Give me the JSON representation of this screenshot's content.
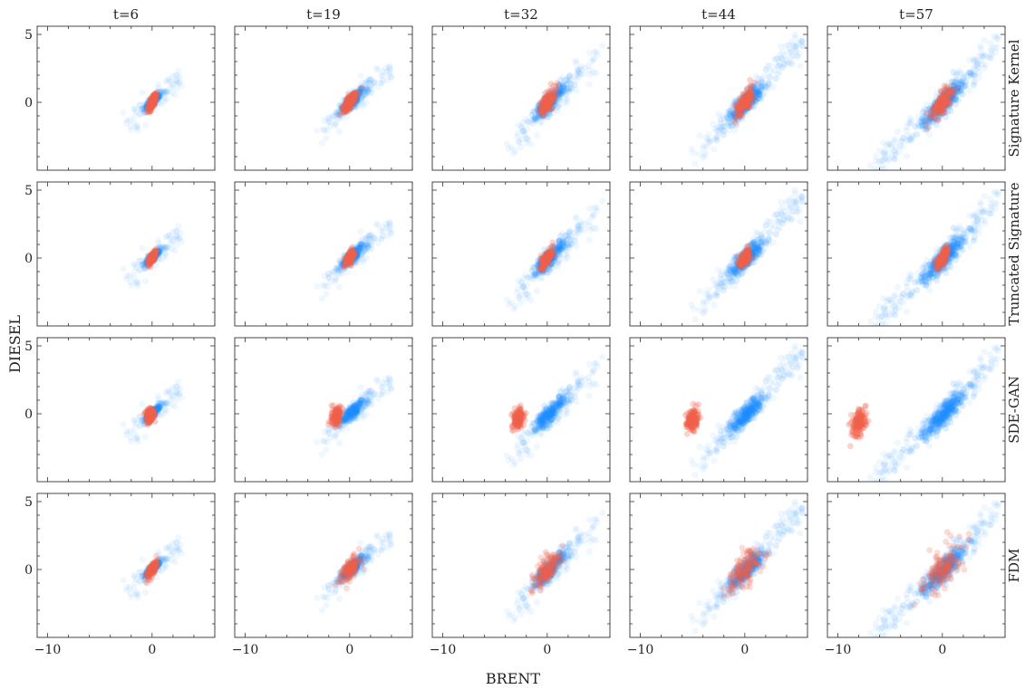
{
  "figure": {
    "xlabel": "BRENT",
    "ylabel": "DIESEL",
    "columns": [
      "t=6",
      "t=19",
      "t=32",
      "t=44",
      "t=57"
    ],
    "rows": [
      "Signature Kernel",
      "Truncated Signature",
      "SDE-GAN",
      "FDM"
    ],
    "colors": {
      "real": "#1e90ff",
      "generated": "#f0604a"
    },
    "xticks": [
      -10,
      0
    ],
    "yticks": [
      5,
      0
    ]
  },
  "chart_data": {
    "type": "scatter",
    "xlabel": "BRENT",
    "ylabel": "DIESEL",
    "xlim": [
      -11,
      6
    ],
    "ylim": [
      -5,
      5.6
    ],
    "grid": false,
    "facet_columns": [
      "t=6",
      "t=19",
      "t=32",
      "t=44",
      "t=57"
    ],
    "facet_rows": [
      "Signature Kernel",
      "Truncated Signature",
      "SDE-GAN",
      "FDM"
    ],
    "series": [
      {
        "role": "real",
        "color": "#1e90ff",
        "by_time": [
          {
            "t": 6,
            "center": [
              0.1,
              0.1
            ],
            "spread_x": 0.7,
            "spread_y": 0.6,
            "x_range": [
              -2.2,
              2.5
            ],
            "y_range": [
              -1.3,
              1.9
            ]
          },
          {
            "t": 19,
            "center": [
              0.2,
              0.1
            ],
            "spread_x": 1.1,
            "spread_y": 1.0,
            "x_range": [
              -2.7,
              3.8
            ],
            "y_range": [
              -2.0,
              2.8
            ]
          },
          {
            "t": 32,
            "center": [
              0.2,
              0.0
            ],
            "spread_x": 1.4,
            "spread_y": 1.3,
            "x_range": [
              -3.8,
              4.8
            ],
            "y_range": [
              -3.3,
              3.8
            ]
          },
          {
            "t": 44,
            "center": [
              0.2,
              0.0
            ],
            "spread_x": 1.6,
            "spread_y": 1.5,
            "x_range": [
              -4.8,
              5.4
            ],
            "y_range": [
              -3.7,
              4.8
            ]
          },
          {
            "t": 57,
            "center": [
              0.2,
              0.0
            ],
            "spread_x": 1.8,
            "spread_y": 1.7,
            "x_range": [
              -6.5,
              5.3
            ],
            "y_range": [
              -4.7,
              4.8
            ]
          }
        ]
      },
      {
        "role": "generated",
        "color": "#f0604a",
        "by_row": [
          {
            "row": "Signature Kernel",
            "centers": [
              [
                0.0,
                0.0
              ],
              [
                0.0,
                0.0
              ],
              [
                0.0,
                0.0
              ],
              [
                0.0,
                0.0
              ],
              [
                0.0,
                0.0
              ]
            ],
            "spread": [
              [
                0.35,
                0.55
              ],
              [
                0.6,
                0.75
              ],
              [
                0.7,
                0.85
              ],
              [
                0.8,
                0.95
              ],
              [
                0.9,
                1.05
              ]
            ]
          },
          {
            "row": "Truncated Signature",
            "centers": [
              [
                0.0,
                0.0
              ],
              [
                0.0,
                0.0
              ],
              [
                0.0,
                0.0
              ],
              [
                0.0,
                0.0
              ],
              [
                0.0,
                0.0
              ]
            ],
            "spread": [
              [
                0.3,
                0.45
              ],
              [
                0.4,
                0.55
              ],
              [
                0.45,
                0.6
              ],
              [
                0.5,
                0.6
              ],
              [
                0.5,
                0.65
              ]
            ]
          },
          {
            "row": "SDE-GAN",
            "centers": [
              [
                -0.2,
                -0.1
              ],
              [
                -1.3,
                -0.2
              ],
              [
                -2.8,
                -0.3
              ],
              [
                -5.0,
                -0.4
              ],
              [
                -8.0,
                -0.6
              ]
            ],
            "spread": [
              [
                0.35,
                0.5
              ],
              [
                0.45,
                0.6
              ],
              [
                0.5,
                0.7
              ],
              [
                0.55,
                0.75
              ],
              [
                0.6,
                0.85
              ]
            ]
          },
          {
            "row": "FDM",
            "centers": [
              [
                0.0,
                0.0
              ],
              [
                0.0,
                0.0
              ],
              [
                0.0,
                0.0
              ],
              [
                0.0,
                0.0
              ],
              [
                0.0,
                0.0
              ]
            ],
            "spread": [
              [
                0.45,
                0.65
              ],
              [
                0.9,
                0.95
              ],
              [
                1.3,
                1.3
              ],
              [
                1.5,
                1.5
              ],
              [
                1.8,
                1.8
              ]
            ]
          }
        ]
      }
    ]
  }
}
